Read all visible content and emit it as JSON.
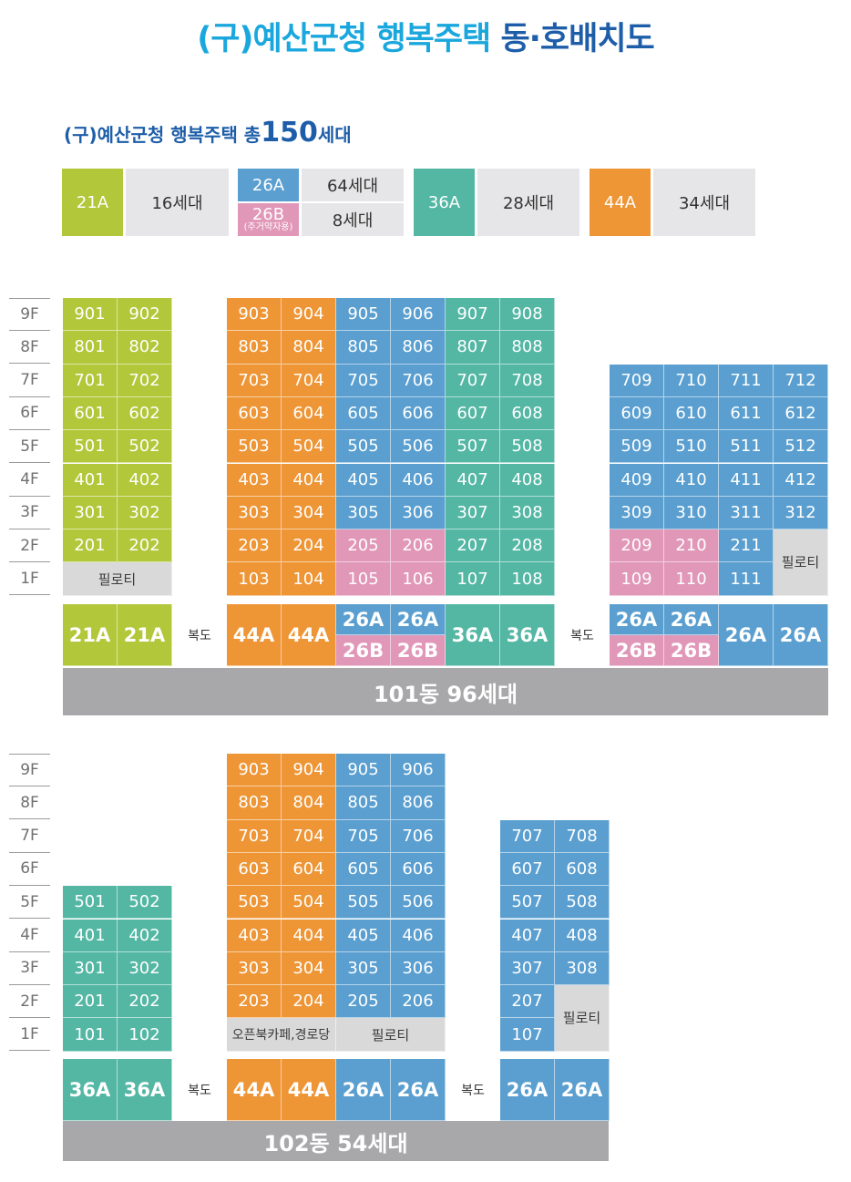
{
  "title": {
    "part1": "(구)예산군청 행복주택",
    "part2": "동·호배치도"
  },
  "subtitle": {
    "prefix": "(구)예산군청 행복주택  총",
    "number": "150",
    "suffix": "세대"
  },
  "colors": {
    "21A": "#b3c73a",
    "44A": "#ee9636",
    "26A": "#5a9fd0",
    "26B": "#e197b8",
    "36A": "#54b7a4",
    "gray": "#d9d9da",
    "bar": "#a8a8aa"
  },
  "legend": [
    {
      "type": "21A",
      "count": "16세대"
    },
    {
      "type": "26A",
      "count": "64세대"
    },
    {
      "type": "26B",
      "sub": "(주거약자용)",
      "count": "8세대"
    },
    {
      "type": "36A",
      "count": "28세대"
    },
    {
      "type": "44A",
      "count": "34세대"
    }
  ],
  "buildings": [
    {
      "label": "101동 96세대",
      "floors": [
        "9F",
        "8F",
        "7F",
        "6F",
        "5F",
        "4F",
        "3F",
        "2F",
        "1F"
      ],
      "pilotis": "필로티",
      "corridor": "복도",
      "columns": [
        {
          "type": "21A",
          "units": [
            "901",
            "801",
            "701",
            "601",
            "501",
            "401",
            "301",
            "201"
          ]
        },
        {
          "type": "21A",
          "units": [
            "902",
            "802",
            "702",
            "602",
            "502",
            "402",
            "302",
            "202"
          ]
        },
        {
          "type": "44A",
          "units": [
            "903",
            "803",
            "703",
            "603",
            "503",
            "403",
            "303",
            "203",
            "103"
          ]
        },
        {
          "type": "44A",
          "units": [
            "904",
            "804",
            "704",
            "604",
            "504",
            "404",
            "304",
            "204",
            "104"
          ]
        },
        {
          "type": "26A",
          "type2": "26B",
          "units": [
            "905",
            "805",
            "705",
            "605",
            "505",
            "405",
            "305",
            "205",
            "105"
          ]
        },
        {
          "type": "26A",
          "type2": "26B",
          "units": [
            "906",
            "806",
            "706",
            "606",
            "506",
            "406",
            "306",
            "206",
            "106"
          ]
        },
        {
          "type": "36A",
          "units": [
            "907",
            "807",
            "707",
            "607",
            "507",
            "407",
            "307",
            "207",
            "107"
          ]
        },
        {
          "type": "36A",
          "units": [
            "908",
            "808",
            "708",
            "608",
            "508",
            "408",
            "308",
            "208",
            "108"
          ]
        },
        {
          "type": "26A",
          "type2": "26B",
          "units": [
            "709",
            "609",
            "509",
            "409",
            "309",
            "209",
            "109"
          ]
        },
        {
          "type": "26A",
          "type2": "26B",
          "units": [
            "710",
            "610",
            "510",
            "410",
            "310",
            "210",
            "110"
          ]
        },
        {
          "type": "26A",
          "units": [
            "711",
            "611",
            "511",
            "411",
            "311",
            "211",
            "111"
          ]
        },
        {
          "type": "26A",
          "units": [
            "712",
            "612",
            "512",
            "412",
            "312"
          ]
        }
      ]
    },
    {
      "label": "102동 54세대",
      "floors": [
        "9F",
        "8F",
        "7F",
        "6F",
        "5F",
        "4F",
        "3F",
        "2F",
        "1F"
      ],
      "pilotis": "필로티",
      "cafe": "오픈북카페,경로당",
      "corridor": "복도",
      "columns": [
        {
          "type": "36A",
          "units": [
            "501",
            "401",
            "301",
            "201",
            "101"
          ]
        },
        {
          "type": "36A",
          "units": [
            "502",
            "402",
            "302",
            "202",
            "102"
          ]
        },
        {
          "type": "44A",
          "units": [
            "903",
            "803",
            "703",
            "603",
            "503",
            "403",
            "303",
            "203"
          ]
        },
        {
          "type": "44A",
          "units": [
            "904",
            "804",
            "704",
            "604",
            "504",
            "404",
            "304",
            "204"
          ]
        },
        {
          "type": "26A",
          "units": [
            "905",
            "805",
            "705",
            "605",
            "505",
            "405",
            "305",
            "205"
          ]
        },
        {
          "type": "26A",
          "units": [
            "906",
            "806",
            "706",
            "606",
            "506",
            "406",
            "306",
            "206"
          ]
        },
        {
          "type": "26A",
          "units": [
            "707",
            "607",
            "507",
            "407",
            "307",
            "207",
            "107"
          ]
        },
        {
          "type": "26A",
          "units": [
            "708",
            "608",
            "508",
            "408",
            "308"
          ]
        }
      ]
    }
  ]
}
